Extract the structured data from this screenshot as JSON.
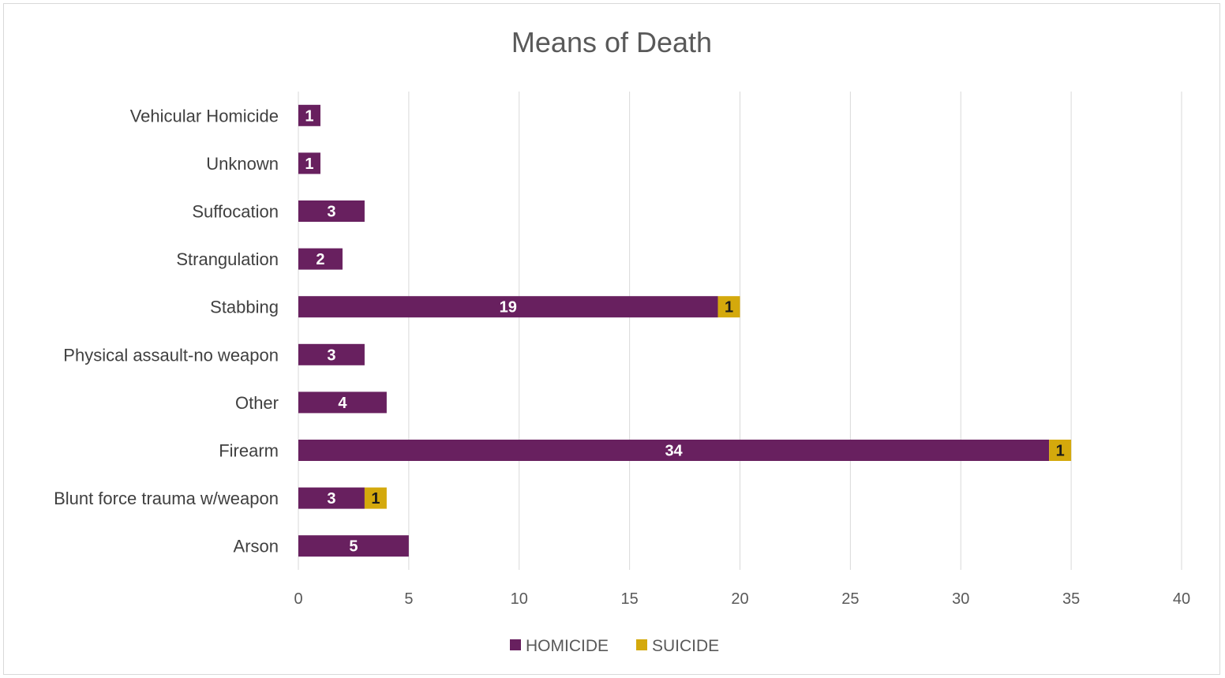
{
  "chart_data": {
    "type": "bar",
    "orientation": "horizontal",
    "stacked": true,
    "title": "Means of Death",
    "xlabel": "",
    "ylabel": "",
    "categories": [
      "Arson",
      "Blunt force trauma w/weapon",
      "Firearm",
      "Other",
      "Physical assault-no weapon",
      "Stabbing",
      "Strangulation",
      "Suffocation",
      "Unknown",
      "Vehicular Homicide"
    ],
    "series": [
      {
        "name": "HOMICIDE",
        "color": "#68205f",
        "label_color": "#ffffff",
        "values": [
          5,
          3,
          34,
          4,
          3,
          19,
          2,
          3,
          1,
          1
        ]
      },
      {
        "name": "SUICIDE",
        "color": "#d4a90c",
        "label_color": "#1a1a1a",
        "values": [
          null,
          1,
          1,
          null,
          null,
          1,
          null,
          null,
          null,
          null
        ]
      }
    ],
    "xlim": [
      0,
      40
    ],
    "xticks": [
      0,
      5,
      10,
      15,
      20,
      25,
      30,
      35,
      40
    ],
    "grid": true,
    "legend": "bottom"
  }
}
